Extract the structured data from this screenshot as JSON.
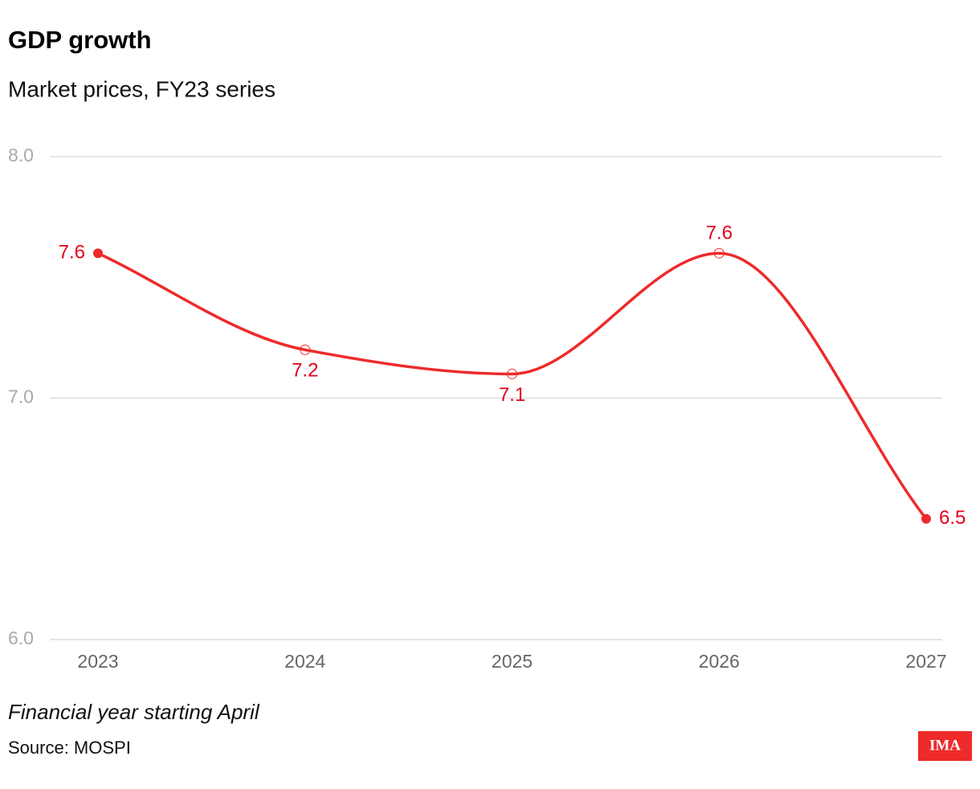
{
  "chart_data": {
    "type": "line",
    "title": "GDP growth",
    "subtitle": "Market prices, FY23 series",
    "categories": [
      "2023",
      "2024",
      "2025",
      "2026",
      "2027"
    ],
    "series": [
      {
        "name": "GDP growth",
        "color": "#ee2a2a",
        "values": [
          7.6,
          7.2,
          7.1,
          7.6,
          6.5
        ]
      }
    ],
    "ylim": [
      6,
      8
    ],
    "yticks": [
      {
        "value": 6,
        "label": "6.0"
      },
      {
        "value": 7,
        "label": "7.0"
      },
      {
        "value": 8,
        "label": "8.0"
      }
    ],
    "grid": true,
    "note": "Financial year starting April",
    "source": "Source: MOSPI",
    "logo": "IMA"
  }
}
